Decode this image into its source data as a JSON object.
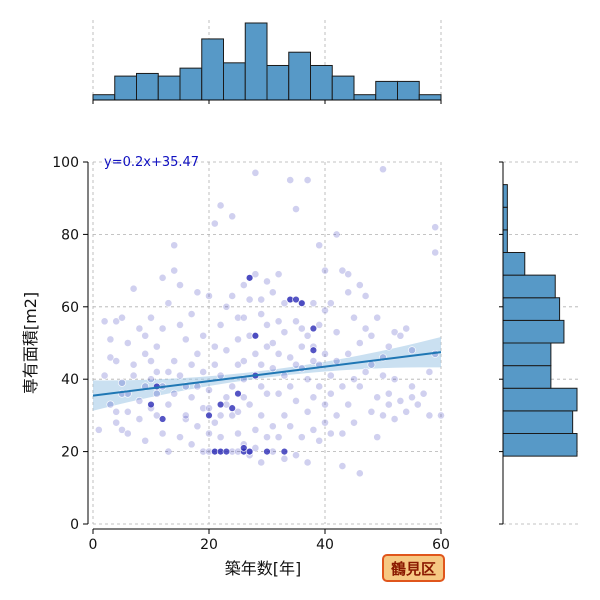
{
  "chart_data": {
    "type": "scatter",
    "subtype": "jointplot",
    "xlabel": "築年数[年]",
    "ylabel": "専有面積[m2]",
    "xlim": [
      0,
      60
    ],
    "ylim": [
      0,
      100
    ],
    "xticks": [
      0,
      20,
      40,
      60
    ],
    "yticks": [
      0,
      20,
      40,
      60,
      80,
      100
    ],
    "grid": true,
    "regression": {
      "label": "y=0.2x+35.47",
      "slope": 0.2,
      "intercept": 35.47,
      "x_range": [
        0,
        60
      ]
    },
    "badge": "鶴見区",
    "colors": {
      "points": "#2b2bb5",
      "regression_line": "#1f77b4",
      "confidence_band": "#9ec6e6",
      "hist_fill": "#5799c7",
      "hist_edge": "#1a1a1a",
      "badge_fill": "#f6c882",
      "badge_border": "#e0561c",
      "badge_text": "#8b1a00",
      "annotation_text": "#1010c0"
    },
    "top_histogram": {
      "bin_edges": [
        0,
        3.75,
        7.5,
        11.25,
        15,
        18.75,
        22.5,
        26.25,
        30,
        33.75,
        37.5,
        41.25,
        45,
        48.75,
        52.5,
        56.25,
        60
      ],
      "counts": [
        2,
        9,
        10,
        9,
        12,
        23,
        14,
        29,
        13,
        18,
        13,
        9,
        2,
        7,
        7,
        2,
        6
      ]
    },
    "right_histogram": {
      "bin_edges": [
        0,
        6.25,
        12.5,
        18.75,
        25,
        31.25,
        37.5,
        43.75,
        50,
        56.25,
        62.5,
        68.75,
        75,
        81.25,
        87.5,
        93.75,
        100
      ],
      "counts": [
        0,
        0,
        0,
        17,
        16,
        17,
        11,
        11,
        14,
        13,
        12,
        5,
        1,
        1,
        1,
        0,
        1
      ]
    },
    "points": [
      [
        1,
        26
      ],
      [
        2,
        41
      ],
      [
        2,
        56
      ],
      [
        3,
        46
      ],
      [
        3,
        51
      ],
      [
        3,
        33
      ],
      [
        4,
        31
      ],
      [
        4,
        45
      ],
      [
        4,
        56
      ],
      [
        4,
        28
      ],
      [
        5,
        36
      ],
      [
        5,
        26
      ],
      [
        5,
        57
      ],
      [
        5,
        39
      ],
      [
        6,
        25
      ],
      [
        6,
        36
      ],
      [
        6,
        50
      ],
      [
        6,
        31
      ],
      [
        7,
        41
      ],
      [
        7,
        65
      ],
      [
        7,
        44
      ],
      [
        8,
        34
      ],
      [
        8,
        54
      ],
      [
        8,
        29
      ],
      [
        9,
        23
      ],
      [
        9,
        47
      ],
      [
        9,
        38
      ],
      [
        9,
        52
      ],
      [
        10,
        32
      ],
      [
        10,
        45
      ],
      [
        10,
        40
      ],
      [
        10,
        57
      ],
      [
        11,
        30
      ],
      [
        11,
        49
      ],
      [
        11,
        36
      ],
      [
        11,
        42
      ],
      [
        12,
        38
      ],
      [
        12,
        68
      ],
      [
        12,
        25
      ],
      [
        12,
        54
      ],
      [
        13,
        20
      ],
      [
        13,
        42
      ],
      [
        13,
        61
      ],
      [
        13,
        33
      ],
      [
        14,
        45
      ],
      [
        14,
        77
      ],
      [
        14,
        70
      ],
      [
        14,
        36
      ],
      [
        15,
        24
      ],
      [
        15,
        41
      ],
      [
        15,
        55
      ],
      [
        15,
        66
      ],
      [
        16,
        29
      ],
      [
        16,
        38
      ],
      [
        16,
        51
      ],
      [
        16,
        30
      ],
      [
        17,
        44
      ],
      [
        17,
        58
      ],
      [
        17,
        35
      ],
      [
        17,
        22
      ],
      [
        18,
        64
      ],
      [
        18,
        38
      ],
      [
        18,
        27
      ],
      [
        18,
        47
      ],
      [
        19,
        20
      ],
      [
        19,
        52
      ],
      [
        19,
        32
      ],
      [
        19,
        42
      ],
      [
        20,
        25
      ],
      [
        20,
        63
      ],
      [
        20,
        20
      ],
      [
        20,
        37
      ],
      [
        20,
        32
      ],
      [
        21,
        20
      ],
      [
        21,
        44
      ],
      [
        21,
        49
      ],
      [
        21,
        28
      ],
      [
        21,
        83
      ],
      [
        22,
        88
      ],
      [
        22,
        55
      ],
      [
        22,
        30
      ],
      [
        22,
        41
      ],
      [
        22,
        24
      ],
      [
        22,
        20
      ],
      [
        23,
        60
      ],
      [
        23,
        35
      ],
      [
        23,
        48
      ],
      [
        23,
        33
      ],
      [
        24,
        85
      ],
      [
        24,
        30
      ],
      [
        24,
        20
      ],
      [
        24,
        63
      ],
      [
        24,
        38
      ],
      [
        25,
        31
      ],
      [
        25,
        44
      ],
      [
        25,
        57
      ],
      [
        25,
        25
      ],
      [
        25,
        51
      ],
      [
        25,
        20
      ],
      [
        26,
        66
      ],
      [
        26,
        40
      ],
      [
        26,
        35
      ],
      [
        26,
        22
      ],
      [
        26,
        57
      ],
      [
        26,
        45
      ],
      [
        27,
        19
      ],
      [
        27,
        52
      ],
      [
        27,
        62
      ],
      [
        27,
        68
      ],
      [
        27,
        33
      ],
      [
        27,
        20
      ],
      [
        28,
        97
      ],
      [
        28,
        26
      ],
      [
        28,
        47
      ],
      [
        28,
        52
      ],
      [
        28,
        69
      ],
      [
        28,
        21
      ],
      [
        29,
        62
      ],
      [
        29,
        38
      ],
      [
        29,
        17
      ],
      [
        29,
        58
      ],
      [
        29,
        44
      ],
      [
        29,
        30
      ],
      [
        30,
        67
      ],
      [
        30,
        49
      ],
      [
        30,
        24
      ],
      [
        30,
        55
      ],
      [
        30,
        36
      ],
      [
        31,
        50
      ],
      [
        31,
        64
      ],
      [
        31,
        27
      ],
      [
        31,
        43
      ],
      [
        31,
        20
      ],
      [
        32,
        56
      ],
      [
        32,
        36
      ],
      [
        32,
        47
      ],
      [
        32,
        69
      ],
      [
        32,
        24
      ],
      [
        33,
        41
      ],
      [
        33,
        61
      ],
      [
        33,
        30
      ],
      [
        33,
        53
      ],
      [
        33,
        18
      ],
      [
        34,
        46
      ],
      [
        34,
        62
      ],
      [
        34,
        27
      ],
      [
        34,
        38
      ],
      [
        34,
        95
      ],
      [
        35,
        87
      ],
      [
        35,
        44
      ],
      [
        35,
        56
      ],
      [
        35,
        19
      ],
      [
        35,
        34
      ],
      [
        36,
        54
      ],
      [
        36,
        43
      ],
      [
        36,
        61
      ],
      [
        36,
        24
      ],
      [
        36,
        49
      ],
      [
        37,
        17
      ],
      [
        37,
        95
      ],
      [
        37,
        52
      ],
      [
        37,
        31
      ],
      [
        37,
        40
      ],
      [
        38,
        45
      ],
      [
        38,
        61
      ],
      [
        38,
        26
      ],
      [
        38,
        49
      ],
      [
        38,
        35
      ],
      [
        39,
        77
      ],
      [
        39,
        44
      ],
      [
        39,
        55
      ],
      [
        39,
        38
      ],
      [
        39,
        23
      ],
      [
        40,
        70
      ],
      [
        40,
        33
      ],
      [
        40,
        47
      ],
      [
        40,
        59
      ],
      [
        40,
        28
      ],
      [
        41,
        36
      ],
      [
        41,
        61
      ],
      [
        41,
        41
      ],
      [
        41,
        25
      ],
      [
        42,
        53
      ],
      [
        42,
        80
      ],
      [
        42,
        30
      ],
      [
        42,
        45
      ],
      [
        43,
        70
      ],
      [
        43,
        25
      ],
      [
        43,
        38
      ],
      [
        43,
        16
      ],
      [
        44,
        47
      ],
      [
        44,
        69
      ],
      [
        44,
        33
      ],
      [
        44,
        64
      ],
      [
        45,
        57
      ],
      [
        45,
        40
      ],
      [
        45,
        28
      ],
      [
        46,
        66
      ],
      [
        46,
        50
      ],
      [
        46,
        14
      ],
      [
        46,
        38
      ],
      [
        47,
        42
      ],
      [
        47,
        54
      ],
      [
        47,
        63
      ],
      [
        48,
        31
      ],
      [
        48,
        52
      ],
      [
        48,
        44
      ],
      [
        49,
        35
      ],
      [
        49,
        57
      ],
      [
        49,
        24
      ],
      [
        50,
        98
      ],
      [
        50,
        41
      ],
      [
        50,
        46
      ],
      [
        50,
        30
      ],
      [
        51,
        36
      ],
      [
        51,
        49
      ],
      [
        51,
        33
      ],
      [
        52,
        53
      ],
      [
        52,
        40
      ],
      [
        52,
        29
      ],
      [
        53,
        52
      ],
      [
        53,
        34
      ],
      [
        54,
        54
      ],
      [
        54,
        31
      ],
      [
        55,
        38
      ],
      [
        55,
        48
      ],
      [
        55,
        35
      ],
      [
        56,
        33
      ],
      [
        57,
        36
      ],
      [
        58,
        42
      ],
      [
        58,
        30
      ],
      [
        59,
        82
      ],
      [
        59,
        75
      ],
      [
        60,
        30
      ],
      [
        59,
        47
      ]
    ],
    "highlighted_points": [
      [
        21,
        20
      ],
      [
        22,
        20
      ],
      [
        23,
        20
      ],
      [
        26,
        20
      ],
      [
        27,
        20
      ],
      [
        26,
        21
      ],
      [
        27,
        68
      ],
      [
        28,
        52
      ],
      [
        28,
        41
      ],
      [
        34,
        62
      ],
      [
        35,
        62
      ],
      [
        36,
        61
      ],
      [
        20,
        30
      ],
      [
        22,
        33
      ],
      [
        24,
        32
      ],
      [
        25,
        36
      ],
      [
        38,
        54
      ],
      [
        38,
        48
      ],
      [
        30,
        20
      ],
      [
        33,
        20
      ],
      [
        10,
        33
      ],
      [
        12,
        29
      ],
      [
        11,
        38
      ]
    ]
  }
}
